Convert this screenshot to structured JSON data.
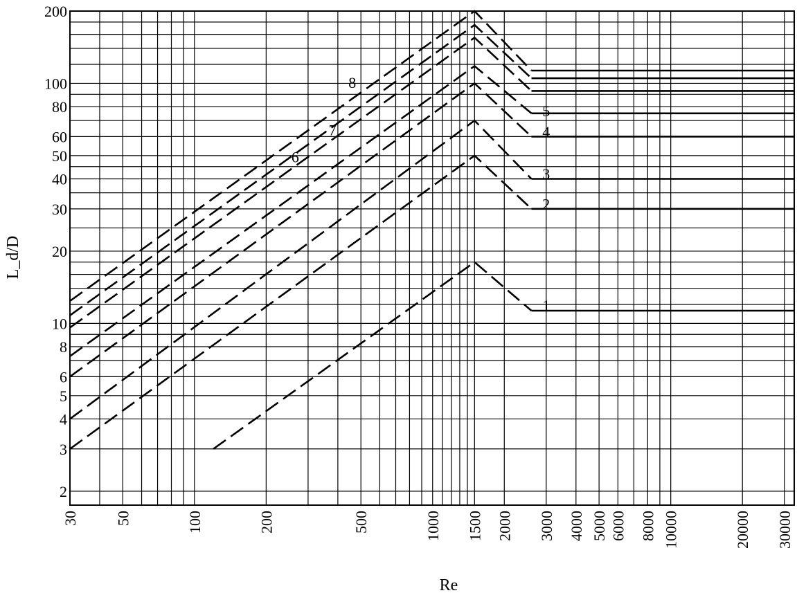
{
  "chart_data": {
    "type": "line",
    "x_scale": "log",
    "y_scale": "log",
    "xlim": [
      30,
      33000
    ],
    "ylim": [
      1.75,
      200
    ],
    "grid": true,
    "xlabel": "Re",
    "ylabel": "L_d/D",
    "x_ticks": [
      {
        "value": 30,
        "label": "30"
      },
      {
        "value": 50,
        "label": "50"
      },
      {
        "value": 100,
        "label": "100"
      },
      {
        "value": 200,
        "label": "200"
      },
      {
        "value": 500,
        "label": "500"
      },
      {
        "value": 1000,
        "label": "1000"
      },
      {
        "value": 1500,
        "label": "1500"
      },
      {
        "value": 2000,
        "label": "2000"
      },
      {
        "value": 3000,
        "label": "3000"
      },
      {
        "value": 4000,
        "label": "4000"
      },
      {
        "value": 5000,
        "label": "5000"
      },
      {
        "value": 6000,
        "label": "6000"
      },
      {
        "value": 8000,
        "label": "8000"
      },
      {
        "value": 10000,
        "label": "10000"
      },
      {
        "value": 20000,
        "label": "20000"
      },
      {
        "value": 30000,
        "label": "30000"
      }
    ],
    "y_ticks": [
      {
        "value": 2,
        "label": "2"
      },
      {
        "value": 3,
        "label": "3"
      },
      {
        "value": 4,
        "label": "4"
      },
      {
        "value": 5,
        "label": "5"
      },
      {
        "value": 6,
        "label": "6"
      },
      {
        "value": 8,
        "label": "8"
      },
      {
        "value": 10,
        "label": "10"
      },
      {
        "value": 20,
        "label": "20"
      },
      {
        "value": 30,
        "label": "30"
      },
      {
        "value": 40,
        "label": "40"
      },
      {
        "value": 50,
        "label": "50"
      },
      {
        "value": 60,
        "label": "60"
      },
      {
        "value": 80,
        "label": "80"
      },
      {
        "value": 100,
        "label": "100"
      },
      {
        "value": 200,
        "label": "200"
      }
    ],
    "series": [
      {
        "name": "1",
        "dashed_x": [
          120,
          1500,
          2600
        ],
        "dashed_y": [
          3,
          18,
          11.3
        ],
        "solid_x": [
          2600,
          33000
        ],
        "solid_y": [
          11.3,
          11.3
        ]
      },
      {
        "name": "2",
        "dashed_x": [
          30,
          1500,
          2600
        ],
        "dashed_y": [
          3,
          50,
          30
        ],
        "solid_x": [
          2600,
          33000
        ],
        "solid_y": [
          30,
          30
        ]
      },
      {
        "name": "3",
        "dashed_x": [
          30,
          1500,
          2600
        ],
        "dashed_y": [
          4,
          70,
          40
        ],
        "solid_x": [
          2600,
          33000
        ],
        "solid_y": [
          40,
          40
        ]
      },
      {
        "name": "4",
        "dashed_x": [
          30,
          1500,
          2600
        ],
        "dashed_y": [
          6,
          100,
          60
        ],
        "solid_x": [
          2600,
          33000
        ],
        "solid_y": [
          60,
          60
        ]
      },
      {
        "name": "5",
        "dashed_x": [
          30,
          1500,
          2600
        ],
        "dashed_y": [
          7.3,
          118,
          75
        ],
        "solid_x": [
          2600,
          33000
        ],
        "solid_y": [
          75,
          75
        ]
      },
      {
        "name": "6",
        "dashed_x": [
          30,
          1500,
          2600
        ],
        "dashed_y": [
          9.6,
          155,
          93
        ],
        "solid_x": [
          2600,
          33000
        ],
        "solid_y": [
          93,
          93
        ]
      },
      {
        "name": "7",
        "dashed_x": [
          30,
          1500,
          2600
        ],
        "dashed_y": [
          10.8,
          175,
          105
        ],
        "solid_x": [
          2600,
          33000
        ],
        "solid_y": [
          105,
          105
        ]
      },
      {
        "name": "8",
        "dashed_x": [
          30,
          1500,
          2600
        ],
        "dashed_y": [
          12.4,
          200,
          113
        ],
        "solid_x": [
          2600,
          33000
        ],
        "solid_y": [
          113,
          113
        ]
      }
    ],
    "curve_labels": [
      {
        "text": "1",
        "x": 3000,
        "y": 11.9
      },
      {
        "text": "2",
        "x": 3000,
        "y": 31.5
      },
      {
        "text": "3",
        "x": 3000,
        "y": 42
      },
      {
        "text": "4",
        "x": 3000,
        "y": 63
      },
      {
        "text": "5",
        "x": 3000,
        "y": 77
      },
      {
        "text": "6",
        "x": 265,
        "y": 49.5
      },
      {
        "text": "7",
        "x": 380,
        "y": 64
      },
      {
        "text": "8",
        "x": 460,
        "y": 101
      }
    ]
  }
}
